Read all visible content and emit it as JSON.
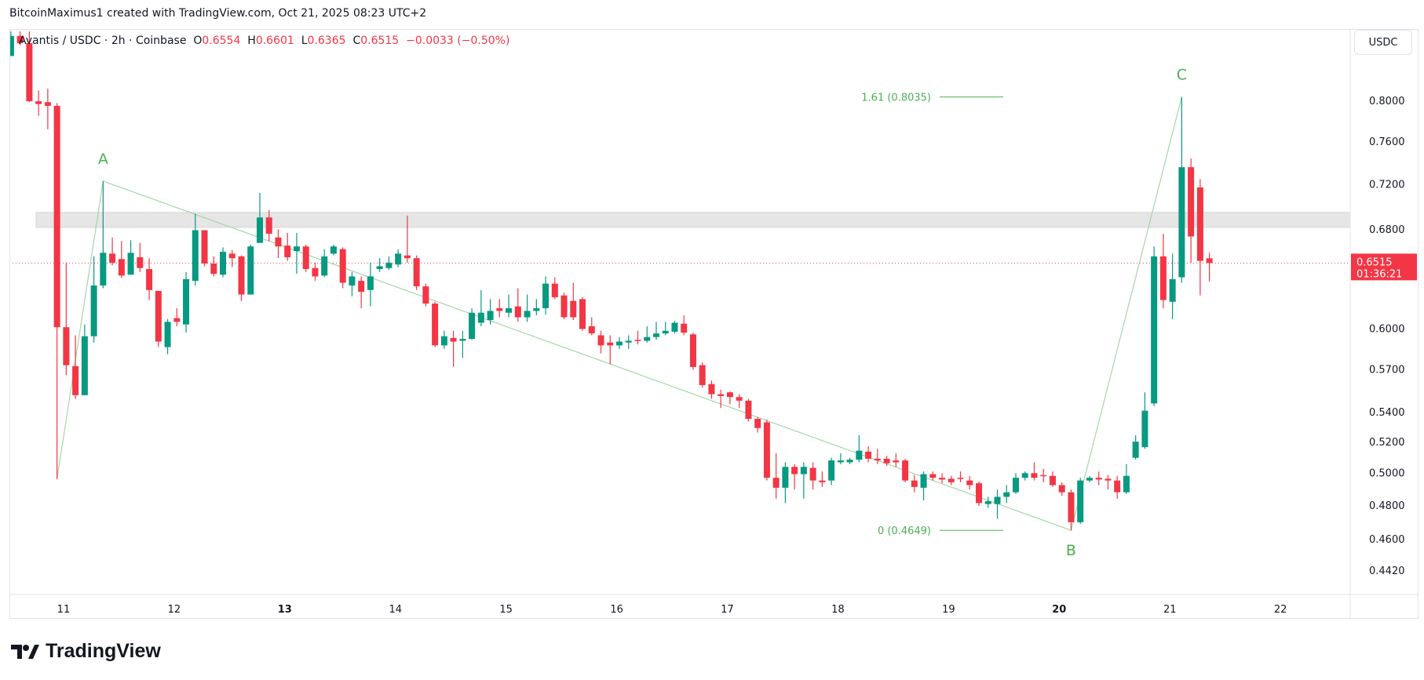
{
  "credit": "BitcoinMaximus1 created with TradingView.com, Oct 21, 2025 08:23 UTC+2",
  "legend": {
    "symbol": "Avantis / USDC · 2h · Coinbase",
    "o_label": "O",
    "o": "0.6554",
    "h_label": "H",
    "h": "0.6601",
    "l_label": "L",
    "l": "0.6365",
    "c_label": "C",
    "c": "0.6515",
    "change": "−0.0033 (−0.50%)"
  },
  "currency_button": "USDC",
  "logo_text": "TradingView",
  "colors": {
    "up": "#089981",
    "down": "#f23645",
    "pattern": "#4caf50",
    "zone": "#e6e6e6"
  },
  "chart_data": {
    "type": "candlestick",
    "y_scale": "log",
    "ylim": [
      0.435,
      0.88
    ],
    "y_ticks": [
      "0.8000",
      "0.7600",
      "0.7200",
      "0.6800",
      "0.6000",
      "0.5700",
      "0.5400",
      "0.5200",
      "0.5000",
      "0.4800",
      "0.4600",
      "0.4420"
    ],
    "x_ticks": [
      {
        "label": "11",
        "bold": false
      },
      {
        "label": "12",
        "bold": false
      },
      {
        "label": "13",
        "bold": true
      },
      {
        "label": "14",
        "bold": false
      },
      {
        "label": "15",
        "bold": false
      },
      {
        "label": "16",
        "bold": false
      },
      {
        "label": "17",
        "bold": false
      },
      {
        "label": "18",
        "bold": false
      },
      {
        "label": "19",
        "bold": false
      },
      {
        "label": "20",
        "bold": true
      },
      {
        "label": "21",
        "bold": false
      },
      {
        "label": "22",
        "bold": false
      }
    ],
    "last_price": {
      "value": "0.6515",
      "countdown": "01:36:21"
    },
    "resistance_zone": [
      0.6815,
      0.6945
    ],
    "abc_pattern": [
      {
        "candle": 5,
        "price": 0.496,
        "label": ""
      },
      {
        "candle": 10,
        "price": 0.7225,
        "label": "A"
      },
      {
        "candle": 115,
        "price": 0.4649,
        "label": "B"
      },
      {
        "candle": 127,
        "price": 0.8035,
        "label": "C"
      }
    ],
    "fib_levels": [
      {
        "text": "1.61 (0.8035)",
        "price": 0.8035
      },
      {
        "text": "0 (0.4649)",
        "price": 0.4649
      }
    ],
    "ohlc": [
      [
        0.8461,
        0.8728,
        0.8461,
        0.8678
      ],
      [
        0.8678,
        0.8728,
        0.8578,
        0.8599
      ],
      [
        0.8599,
        0.8728,
        0.7982,
        0.7991
      ],
      [
        0.7991,
        0.8101,
        0.7846,
        0.7963
      ],
      [
        0.7982,
        0.812,
        0.7713,
        0.7945
      ],
      [
        0.7945,
        0.7973,
        0.496,
        0.6008
      ],
      [
        0.6008,
        0.6518,
        0.5655,
        0.5727
      ],
      [
        0.572,
        0.5947,
        0.5488,
        0.5514
      ],
      [
        0.5514,
        0.6029,
        0.5514,
        0.594
      ],
      [
        0.594,
        0.657,
        0.5893,
        0.6333
      ],
      [
        0.6333,
        0.7225,
        0.6311,
        0.66
      ],
      [
        0.6593,
        0.6729,
        0.6496,
        0.6518
      ],
      [
        0.6548,
        0.6698,
        0.6392,
        0.6413
      ],
      [
        0.642,
        0.6706,
        0.642,
        0.66
      ],
      [
        0.6563,
        0.6683,
        0.6442,
        0.6474
      ],
      [
        0.6466,
        0.6555,
        0.6218,
        0.6297
      ],
      [
        0.629,
        0.629,
        0.5859,
        0.59
      ],
      [
        0.5859,
        0.607,
        0.5806,
        0.6049
      ],
      [
        0.6077,
        0.6154,
        0.6015,
        0.6049
      ],
      [
        0.6029,
        0.6442,
        0.5967,
        0.6384
      ],
      [
        0.637,
        0.6933,
        0.6333,
        0.6791
      ],
      [
        0.6791,
        0.6791,
        0.6489,
        0.6511
      ],
      [
        0.6511,
        0.657,
        0.6406,
        0.6427
      ],
      [
        0.642,
        0.6645,
        0.6399,
        0.6608
      ],
      [
        0.6593,
        0.6623,
        0.6481,
        0.6555
      ],
      [
        0.657,
        0.6578,
        0.6211,
        0.6261
      ],
      [
        0.6261,
        0.6668,
        0.6261,
        0.6653
      ],
      [
        0.6683,
        0.7118,
        0.6683,
        0.6901
      ],
      [
        0.6901,
        0.6965,
        0.6698,
        0.676
      ],
      [
        0.6729,
        0.6799,
        0.6555,
        0.6653
      ],
      [
        0.666,
        0.6768,
        0.6533,
        0.6563
      ],
      [
        0.6615,
        0.6768,
        0.6427,
        0.6653
      ],
      [
        0.6653,
        0.6668,
        0.6442,
        0.6466
      ],
      [
        0.6474,
        0.6518,
        0.637,
        0.6406
      ],
      [
        0.6413,
        0.663,
        0.6399,
        0.657
      ],
      [
        0.6593,
        0.6668,
        0.6578,
        0.6653
      ],
      [
        0.663,
        0.6645,
        0.6311,
        0.6355
      ],
      [
        0.6333,
        0.6442,
        0.6247,
        0.6406
      ],
      [
        0.637,
        0.6406,
        0.6154,
        0.6283
      ],
      [
        0.6297,
        0.6518,
        0.6168,
        0.6406
      ],
      [
        0.6466,
        0.6555,
        0.6442,
        0.6489
      ],
      [
        0.6474,
        0.657,
        0.6459,
        0.6518
      ],
      [
        0.6503,
        0.663,
        0.6481,
        0.6593
      ],
      [
        0.6578,
        0.6917,
        0.6518,
        0.6555
      ],
      [
        0.6555,
        0.6578,
        0.6297,
        0.6326
      ],
      [
        0.6326,
        0.6348,
        0.6168,
        0.619
      ],
      [
        0.619,
        0.6204,
        0.5859,
        0.5872
      ],
      [
        0.5872,
        0.5981,
        0.5846,
        0.594
      ],
      [
        0.5927,
        0.5981,
        0.5714,
        0.59
      ],
      [
        0.5906,
        0.5981,
        0.578,
        0.592
      ],
      [
        0.592,
        0.6154,
        0.5913,
        0.6119
      ],
      [
        0.6042,
        0.6297,
        0.6015,
        0.6119
      ],
      [
        0.6063,
        0.6225,
        0.6029,
        0.6133
      ],
      [
        0.6154,
        0.6225,
        0.6084,
        0.6133
      ],
      [
        0.6119,
        0.6261,
        0.6084,
        0.6154
      ],
      [
        0.6168,
        0.6311,
        0.6049,
        0.6084
      ],
      [
        0.6084,
        0.6261,
        0.6049,
        0.6133
      ],
      [
        0.6133,
        0.6225,
        0.6098,
        0.6154
      ],
      [
        0.6154,
        0.6406,
        0.6105,
        0.6348
      ],
      [
        0.6348,
        0.6399,
        0.6225,
        0.624
      ],
      [
        0.6254,
        0.6276,
        0.607,
        0.6084
      ],
      [
        0.6211,
        0.6355,
        0.6063,
        0.6084
      ],
      [
        0.6225,
        0.624,
        0.5981,
        0.5995
      ],
      [
        0.6015,
        0.6084,
        0.5947,
        0.5961
      ],
      [
        0.5947,
        0.5981,
        0.5813,
        0.5872
      ],
      [
        0.5893,
        0.5947,
        0.5734,
        0.5872
      ],
      [
        0.5872,
        0.5934,
        0.5846,
        0.59
      ],
      [
        0.5893,
        0.5947,
        0.5846,
        0.5906
      ],
      [
        0.5913,
        0.5981,
        0.5879,
        0.5906
      ],
      [
        0.5906,
        0.6015,
        0.5893,
        0.5934
      ],
      [
        0.5934,
        0.6049,
        0.5913,
        0.5961
      ],
      [
        0.5961,
        0.6049,
        0.5947,
        0.5981
      ],
      [
        0.5974,
        0.6056,
        0.5961,
        0.6042
      ],
      [
        0.6035,
        0.6098,
        0.5947,
        0.5967
      ],
      [
        0.5954,
        0.5967,
        0.5694,
        0.5714
      ],
      [
        0.5727,
        0.5747,
        0.5566,
        0.5585
      ],
      [
        0.5592,
        0.5617,
        0.5488,
        0.5521
      ],
      [
        0.5521,
        0.5553,
        0.5426,
        0.5508
      ],
      [
        0.5534,
        0.554,
        0.5451,
        0.5501
      ],
      [
        0.5501,
        0.5521,
        0.5426,
        0.5476
      ],
      [
        0.5476,
        0.5488,
        0.5334,
        0.5352
      ],
      [
        0.5352,
        0.5364,
        0.526,
        0.529
      ],
      [
        0.5328,
        0.5346,
        0.4951,
        0.4968
      ],
      [
        0.4968,
        0.5124,
        0.4839,
        0.4906
      ],
      [
        0.4906,
        0.5066,
        0.4812,
        0.5037
      ],
      [
        0.5037,
        0.5054,
        0.4895,
        0.4991
      ],
      [
        0.4991,
        0.5066,
        0.4839,
        0.5037
      ],
      [
        0.5031,
        0.5066,
        0.4895,
        0.4951
      ],
      [
        0.4951,
        0.5008,
        0.4911,
        0.494
      ],
      [
        0.4951,
        0.5095,
        0.4922,
        0.5078
      ],
      [
        0.5066,
        0.5124,
        0.5054,
        0.5078
      ],
      [
        0.5066,
        0.5095,
        0.5054,
        0.5083
      ],
      [
        0.5083,
        0.5242,
        0.5066,
        0.5141
      ],
      [
        0.5135,
        0.517,
        0.5066,
        0.5089
      ],
      [
        0.5089,
        0.5153,
        0.5054,
        0.5078
      ],
      [
        0.5089,
        0.5107,
        0.5043,
        0.506
      ],
      [
        0.5078,
        0.5124,
        0.5037,
        0.5066
      ],
      [
        0.5078,
        0.5089,
        0.494,
        0.4951
      ],
      [
        0.4951,
        0.4985,
        0.4878,
        0.4911
      ],
      [
        0.4906,
        0.5008,
        0.4828,
        0.4991
      ],
      [
        0.4991,
        0.5008,
        0.4951,
        0.4968
      ],
      [
        0.4968,
        0.4997,
        0.4934,
        0.4957
      ],
      [
        0.4962,
        0.498,
        0.4922,
        0.494
      ],
      [
        0.4968,
        0.5008,
        0.494,
        0.4962
      ],
      [
        0.4951,
        0.498,
        0.4895,
        0.4922
      ],
      [
        0.4934,
        0.4945,
        0.4795,
        0.4812
      ],
      [
        0.4806,
        0.485,
        0.4783,
        0.4823
      ],
      [
        0.4806,
        0.4895,
        0.4718,
        0.485
      ],
      [
        0.485,
        0.4922,
        0.4812,
        0.4878
      ],
      [
        0.4878,
        0.4997,
        0.4867,
        0.4968
      ],
      [
        0.4968,
        0.5008,
        0.4951,
        0.4997
      ],
      [
        0.4997,
        0.5066,
        0.4951,
        0.4968
      ],
      [
        0.4985,
        0.5025,
        0.494,
        0.498
      ],
      [
        0.498,
        0.5008,
        0.4911,
        0.4922
      ],
      [
        0.4922,
        0.494,
        0.4856,
        0.4878
      ],
      [
        0.4878,
        0.4895,
        0.4649,
        0.4697
      ],
      [
        0.4697,
        0.4968,
        0.4686,
        0.4951
      ],
      [
        0.4951,
        0.498,
        0.494,
        0.4968
      ],
      [
        0.4968,
        0.5008,
        0.4922,
        0.4957
      ],
      [
        0.4962,
        0.4985,
        0.4895,
        0.4951
      ],
      [
        0.4951,
        0.498,
        0.4839,
        0.4878
      ],
      [
        0.4878,
        0.5054,
        0.4867,
        0.498
      ],
      [
        0.5095,
        0.5242,
        0.5083,
        0.52
      ],
      [
        0.5164,
        0.5534,
        0.5153,
        0.5407
      ],
      [
        0.5457,
        0.6653,
        0.5439,
        0.657
      ],
      [
        0.657,
        0.676,
        0.6154,
        0.6218
      ],
      [
        0.6204,
        0.6593,
        0.607,
        0.6384
      ],
      [
        0.6399,
        0.8035,
        0.6355,
        0.7353
      ],
      [
        0.7353,
        0.7434,
        0.6518,
        0.6737
      ],
      [
        0.7168,
        0.7243,
        0.6254,
        0.6533
      ],
      [
        0.6554,
        0.6601,
        0.6365,
        0.6515
      ]
    ]
  }
}
